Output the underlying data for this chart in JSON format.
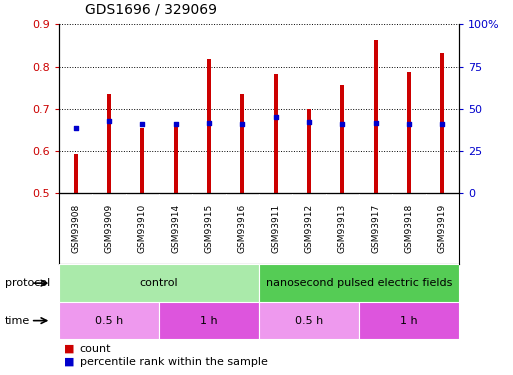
{
  "title": "GDS1696 / 329069",
  "samples": [
    "GSM93908",
    "GSM93909",
    "GSM93910",
    "GSM93914",
    "GSM93915",
    "GSM93916",
    "GSM93911",
    "GSM93912",
    "GSM93913",
    "GSM93917",
    "GSM93918",
    "GSM93919"
  ],
  "count_values": [
    0.593,
    0.735,
    0.655,
    0.667,
    0.818,
    0.735,
    0.783,
    0.7,
    0.757,
    0.863,
    0.787,
    0.833
  ],
  "percentile_values": [
    0.655,
    0.67,
    0.663,
    0.663,
    0.667,
    0.663,
    0.68,
    0.668,
    0.665,
    0.667,
    0.665,
    0.665
  ],
  "ylim_left": [
    0.5,
    0.9
  ],
  "ylim_right": [
    0,
    100
  ],
  "yticks_left": [
    0.5,
    0.6,
    0.7,
    0.8,
    0.9
  ],
  "yticks_right": [
    0,
    25,
    50,
    75,
    100
  ],
  "ytick_labels_right": [
    "0",
    "25",
    "50",
    "75",
    "100%"
  ],
  "bar_bottom": 0.5,
  "count_color": "#cc0000",
  "percentile_color": "#0000cc",
  "bar_width": 0.12,
  "grid_color": "#000000",
  "protocol_groups": [
    {
      "label": "control",
      "start": 0,
      "end": 6,
      "color": "#aaeaaa"
    },
    {
      "label": "nanosecond pulsed electric fields",
      "start": 6,
      "end": 12,
      "color": "#55cc55"
    }
  ],
  "time_groups": [
    {
      "label": "0.5 h",
      "start": 0,
      "end": 3,
      "color": "#ee99ee"
    },
    {
      "label": "1 h",
      "start": 3,
      "end": 6,
      "color": "#dd55dd"
    },
    {
      "label": "0.5 h",
      "start": 6,
      "end": 9,
      "color": "#ee99ee"
    },
    {
      "label": "1 h",
      "start": 9,
      "end": 12,
      "color": "#dd55dd"
    }
  ],
  "legend_count_label": "count",
  "legend_percentile_label": "percentile rank within the sample",
  "tick_label_color_left": "#cc0000",
  "tick_label_color_right": "#0000cc",
  "bg_color": "#ffffff",
  "plot_bg_color": "#ffffff",
  "spine_color": "#000000",
  "sample_bg_color": "#dddddd"
}
